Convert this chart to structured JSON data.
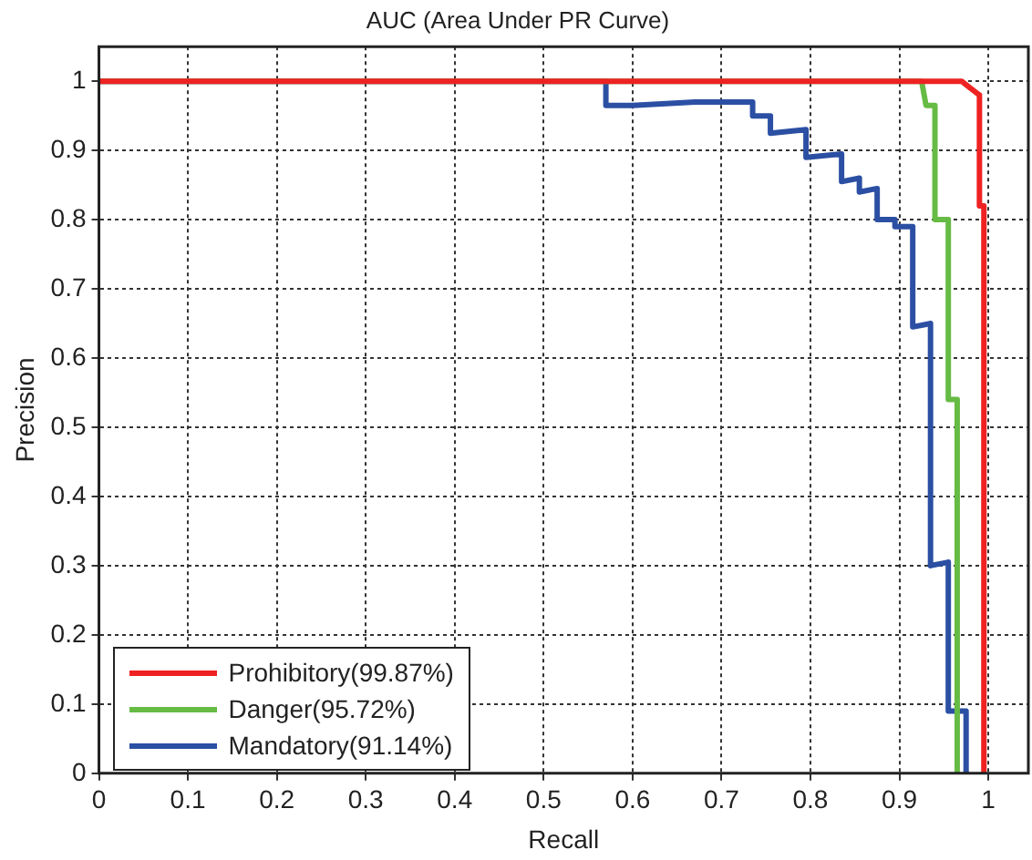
{
  "chart_data": {
    "type": "line",
    "title": "AUC (Area Under PR Curve)",
    "xlabel": "Recall",
    "ylabel": "Precision",
    "xlim": [
      0,
      1.045
    ],
    "ylim": [
      0,
      1.05
    ],
    "xticks": [
      0,
      0.1,
      0.2,
      0.3,
      0.4,
      0.5,
      0.6,
      0.7,
      0.8,
      0.9,
      1
    ],
    "yticks": [
      0,
      0.1,
      0.2,
      0.3,
      0.4,
      0.5,
      0.6,
      0.7,
      0.8,
      0.9,
      1
    ],
    "grid": true,
    "legend": "bottom left",
    "marker": "none",
    "line_style": "solid",
    "series": [
      {
        "name": "Prohibitory(99.87%)",
        "color": "#ee2222",
        "x": [
          0,
          0.97,
          0.98,
          0.99,
          0.99,
          0.995,
          0.995
        ],
        "values": [
          1,
          1,
          0.99,
          0.98,
          0.82,
          0.82,
          0
        ]
      },
      {
        "name": "Danger(95.72%)",
        "color": "#66bb44",
        "x": [
          0,
          0.925,
          0.93,
          0.94,
          0.94,
          0.955,
          0.955,
          0.965,
          0.965
        ],
        "values": [
          1,
          1,
          0.965,
          0.965,
          0.8,
          0.8,
          0.54,
          0.54,
          0
        ]
      },
      {
        "name": "Mandatory(91.14%)",
        "color": "#2b4fa3",
        "x": [
          0,
          0.57,
          0.57,
          0.6,
          0.67,
          0.735,
          0.735,
          0.755,
          0.755,
          0.795,
          0.795,
          0.835,
          0.835,
          0.855,
          0.855,
          0.875,
          0.875,
          0.895,
          0.895,
          0.915,
          0.915,
          0.935,
          0.935,
          0.955,
          0.955,
          0.975,
          0.975
        ],
        "values": [
          1,
          1,
          0.965,
          0.965,
          0.97,
          0.97,
          0.95,
          0.95,
          0.925,
          0.93,
          0.89,
          0.895,
          0.855,
          0.86,
          0.84,
          0.845,
          0.8,
          0.8,
          0.79,
          0.79,
          0.645,
          0.65,
          0.3,
          0.305,
          0.09,
          0.09,
          0
        ]
      }
    ]
  }
}
